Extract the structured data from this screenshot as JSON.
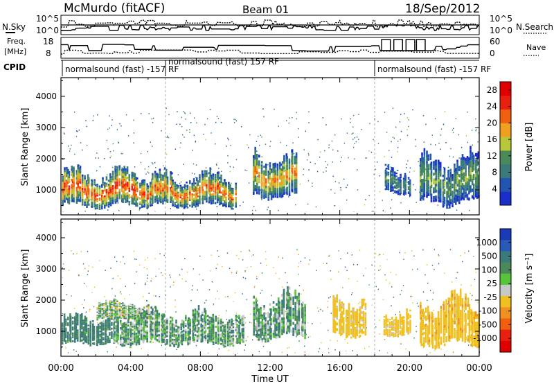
{
  "header": {
    "station": "McMurdo (fitACF)",
    "beam": "Beam 01",
    "date": "18/Sep/2012"
  },
  "top_strip": {
    "nsky_label": "N.Sky",
    "nsky_ticks": [
      "10^5",
      "10^0"
    ],
    "nsearch_label": "N.Search",
    "nsearch_ticks": [
      "10^5",
      "10^0"
    ],
    "freq_label_1": "Freq.",
    "freq_label_2": "[MHz]",
    "freq_ticks": [
      "18",
      "8"
    ],
    "nave_label": "Nave",
    "nave_ticks": [
      "60",
      "0"
    ],
    "cpid_label": "CPID",
    "cpid_segments": [
      {
        "t_start": "00:00",
        "label": "normalsound (fast) -157 RF"
      },
      {
        "t_start": "06:00",
        "label": "normalsound (fast) 157 RF"
      },
      {
        "t_start": "18:00",
        "label": "normalsound (fast) -157 RF"
      }
    ]
  },
  "colors": {
    "power_scale": [
      "#1a2ec8",
      "#2255b0",
      "#3a7a7a",
      "#4a8a5a",
      "#b8c83a",
      "#f0a020",
      "#f06010",
      "#e82010",
      "#e00000"
    ],
    "velocity_scale": [
      "#1a3ab8",
      "#2a5ab8",
      "#3a7a7a",
      "#4a8a5a",
      "#58c43a",
      "#c8c8c8",
      "#f0c020",
      "#f09020",
      "#f06010",
      "#e82010",
      "#e00000"
    ]
  },
  "chart_data": [
    {
      "type": "heatmap",
      "title": "",
      "xlabel": "Time UT",
      "ylabel": "Slant Range [km]",
      "x_ticks": [
        "00:00",
        "04:00",
        "08:00",
        "12:00",
        "16:00",
        "20:00",
        "00:00"
      ],
      "y_ticks": [
        "1000",
        "2000",
        "3000",
        "4000"
      ],
      "xlim_hours": [
        0,
        24
      ],
      "ylim_km": [
        200,
        4600
      ],
      "colorbar": {
        "label": "Power [dB]",
        "ticks": [
          "4",
          "8",
          "12",
          "16",
          "20",
          "24",
          "28"
        ],
        "range": [
          0,
          30
        ]
      },
      "echo_bands": [
        {
          "t0": 0.0,
          "t1": 5.0,
          "r_lo": 500,
          "r_hi": 1500,
          "level_db": 22
        },
        {
          "t0": 5.0,
          "t1": 10.0,
          "r_lo": 500,
          "r_hi": 1400,
          "level_db": 20
        },
        {
          "t0": 11.0,
          "t1": 13.5,
          "r_lo": 800,
          "r_hi": 2000,
          "level_db": 18
        },
        {
          "t0": 18.5,
          "t1": 20.0,
          "r_lo": 900,
          "r_hi": 1600,
          "level_db": 10
        },
        {
          "t0": 20.5,
          "t1": 24.0,
          "r_lo": 600,
          "r_hi": 1900,
          "level_db": 12
        }
      ]
    },
    {
      "type": "heatmap",
      "title": "",
      "xlabel": "Time UT",
      "ylabel": "Slant Range [km]",
      "x_ticks": [
        "00:00",
        "04:00",
        "08:00",
        "12:00",
        "16:00",
        "20:00",
        "00:00"
      ],
      "y_ticks": [
        "1000",
        "2000",
        "3000",
        "4000"
      ],
      "xlim_hours": [
        0,
        24
      ],
      "ylim_km": [
        200,
        4600
      ],
      "colorbar": {
        "label": "Velocity [m s⁻¹]",
        "ticks": [
          "1000",
          "500",
          "100",
          "25",
          "-25",
          "-100",
          "-500",
          "-1000"
        ],
        "range": [
          -1200,
          1200
        ]
      },
      "echo_bands": [
        {
          "t0": 0.0,
          "t1": 3.0,
          "r_lo": 600,
          "r_hi": 1400,
          "level_ms": 150
        },
        {
          "t0": 2.0,
          "t1": 5.0,
          "r_lo": 1400,
          "r_hi": 1900,
          "level_ms": 0
        },
        {
          "t0": 3.0,
          "t1": 10.5,
          "r_lo": 600,
          "r_hi": 1500,
          "level_ms": 50
        },
        {
          "t0": 11.0,
          "t1": 14.0,
          "r_lo": 800,
          "r_hi": 2000,
          "level_ms": 50
        },
        {
          "t0": 15.5,
          "t1": 17.5,
          "r_lo": 900,
          "r_hi": 2000,
          "level_ms": -200
        },
        {
          "t0": 18.5,
          "t1": 20.0,
          "r_lo": 900,
          "r_hi": 1600,
          "level_ms": -200
        },
        {
          "t0": 20.5,
          "t1": 24.0,
          "r_lo": 600,
          "r_hi": 1900,
          "level_ms": -400
        }
      ]
    }
  ]
}
